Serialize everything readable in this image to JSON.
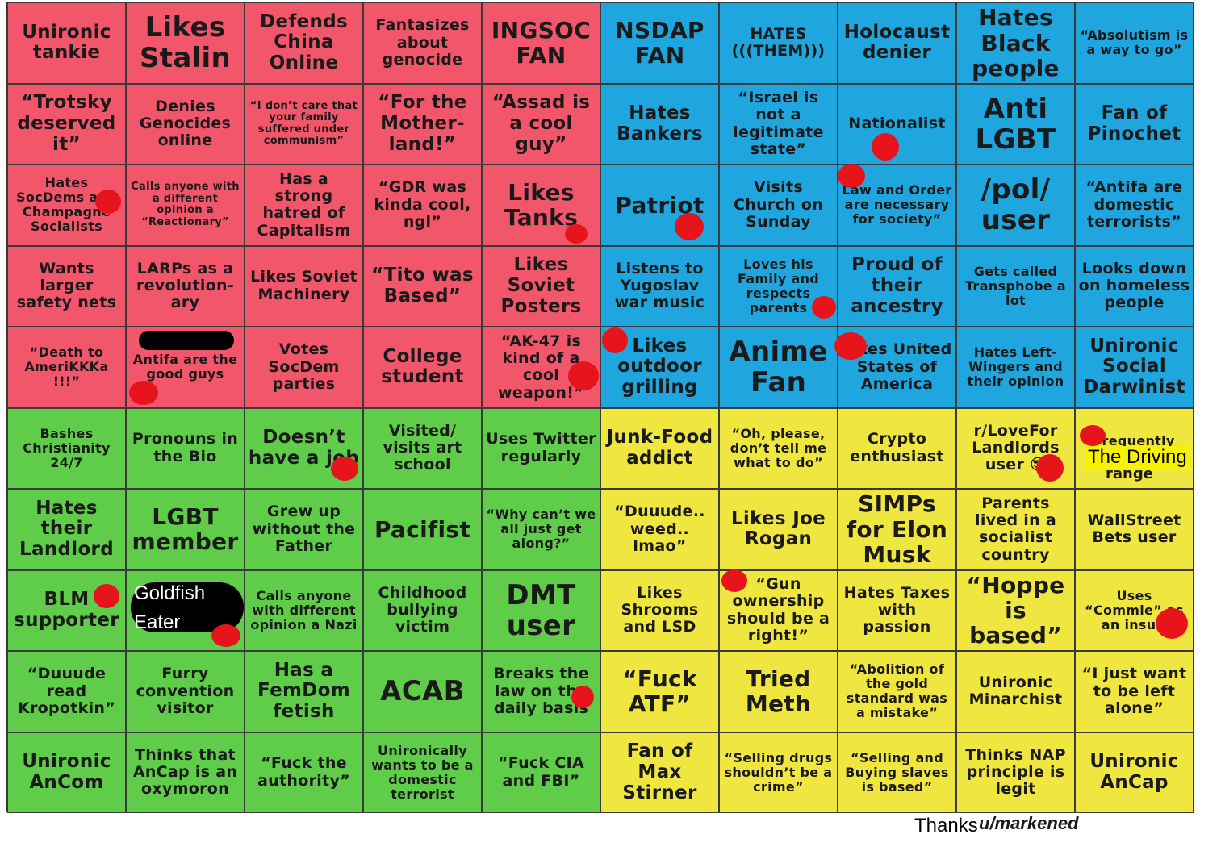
{
  "cells": [
    {
      "text": "Unironic tankie",
      "color": "red",
      "size": "s-m"
    },
    {
      "text": "Likes Stalin",
      "color": "red",
      "size": "s-xl"
    },
    {
      "text": "Defends China Online",
      "color": "red",
      "size": "s-m"
    },
    {
      "text": "Fantasizes about genocide",
      "color": "red",
      "size": "s-s"
    },
    {
      "text": "INGSOC FAN",
      "color": "red",
      "size": "s-l"
    },
    {
      "text": "NSDAP FAN",
      "color": "blue",
      "size": "s-l"
    },
    {
      "text": "HATES (((THEM)))",
      "color": "blue",
      "size": "s-s"
    },
    {
      "text": "Holocaust denier",
      "color": "blue",
      "size": "s-m"
    },
    {
      "text": "Hates Black people",
      "color": "blue",
      "size": "s-l"
    },
    {
      "text": "“Absolutism is a way to go”",
      "color": "blue",
      "size": "s-xs"
    },
    {
      "text": "“Trotsky deserved it”",
      "color": "red",
      "size": "s-m"
    },
    {
      "text": "Denies Genocides online",
      "color": "red",
      "size": "s-s"
    },
    {
      "text": "“I don’t care that your family suffered under communism”",
      "color": "red",
      "size": "s-xxs"
    },
    {
      "text": "“For the Mother-land!”",
      "color": "red",
      "size": "s-m"
    },
    {
      "text": "“Assad is a cool guy”",
      "color": "red",
      "size": "s-m"
    },
    {
      "text": "Hates Bankers",
      "color": "blue",
      "size": "s-m"
    },
    {
      "text": "“Israel is not a legitimate state”",
      "color": "blue",
      "size": "s-s"
    },
    {
      "text": "Nationalist",
      "color": "blue",
      "size": "s-s"
    },
    {
      "text": "Anti LGBT",
      "color": "blue",
      "size": "s-xl"
    },
    {
      "text": "Fan of Pinochet",
      "color": "blue",
      "size": "s-m"
    },
    {
      "text": "Hates SocDems and Champagne Socialists",
      "color": "red",
      "size": "s-xs"
    },
    {
      "text": "Calls anyone with a different opinion a “Reactionary”",
      "color": "red",
      "size": "s-xxs"
    },
    {
      "text": "Has a strong hatred of Capitalism",
      "color": "red",
      "size": "s-s"
    },
    {
      "text": "“GDR was kinda cool, ngl”",
      "color": "red",
      "size": "s-s"
    },
    {
      "text": "Likes Tanks",
      "color": "red",
      "size": "s-l"
    },
    {
      "text": "Patriot",
      "color": "blue",
      "size": "s-l"
    },
    {
      "text": "Visits Church on Sunday",
      "color": "blue",
      "size": "s-s"
    },
    {
      "text": "Law and Order are necessary for society”",
      "color": "blue",
      "size": "s-xs"
    },
    {
      "text": "/pol/ user",
      "color": "blue",
      "size": "s-xl"
    },
    {
      "text": "“Antifa are domestic terrorists”",
      "color": "blue",
      "size": "s-s"
    },
    {
      "text": "Wants larger safety nets",
      "color": "red",
      "size": "s-s"
    },
    {
      "text": "LARPs as a revolution-ary",
      "color": "red",
      "size": "s-s"
    },
    {
      "text": "Likes Soviet Machinery",
      "color": "red",
      "size": "s-s"
    },
    {
      "text": "“Tito was Based”",
      "color": "red",
      "size": "s-m"
    },
    {
      "text": "Likes Soviet Posters",
      "color": "red",
      "size": "s-m"
    },
    {
      "text": "Listens to Yugoslav war music",
      "color": "blue",
      "size": "s-s"
    },
    {
      "text": "Loves his Family and respects parents",
      "color": "blue",
      "size": "s-xs"
    },
    {
      "text": "Proud of their ancestry",
      "color": "blue",
      "size": "s-m"
    },
    {
      "text": "Gets called Transphobe a lot",
      "color": "blue",
      "size": "s-xs"
    },
    {
      "text": "Looks down on homeless people",
      "color": "blue",
      "size": "s-s"
    },
    {
      "text": "“Death to AmeriKKKa !!!”",
      "color": "red",
      "size": "s-xs"
    },
    {
      "text": "Antifa are the good guys",
      "color": "red",
      "size": "s-xs"
    },
    {
      "text": "Votes SocDem parties",
      "color": "red",
      "size": "s-s"
    },
    {
      "text": "College student",
      "color": "red",
      "size": "s-m"
    },
    {
      "text": "“AK-47 is kind of a cool weapon!”",
      "color": "red",
      "size": "s-s"
    },
    {
      "text": "Likes outdoor grilling",
      "color": "blue",
      "size": "s-m"
    },
    {
      "text": "Anime Fan",
      "color": "blue",
      "size": "s-xl"
    },
    {
      "text": "Likes United States of America",
      "color": "blue",
      "size": "s-s"
    },
    {
      "text": "Hates Left-Wingers and their opinion",
      "color": "blue",
      "size": "s-xs"
    },
    {
      "text": "Unironic Social Darwinist",
      "color": "blue",
      "size": "s-m"
    },
    {
      "text": "Bashes Christianity 24/7",
      "color": "green",
      "size": "s-xs"
    },
    {
      "text": "Pronouns in the Bio",
      "color": "green",
      "size": "s-s"
    },
    {
      "text": "Doesn’t have a job",
      "color": "green",
      "size": "s-m"
    },
    {
      "text": "Visited/ visits art school",
      "color": "green",
      "size": "s-s"
    },
    {
      "text": "Uses Twitter regularly",
      "color": "green",
      "size": "s-s"
    },
    {
      "text": "Junk-Food addict",
      "color": "yellow",
      "size": "s-m"
    },
    {
      "text": "“Oh, please, don’t tell me what to do”",
      "color": "yellow",
      "size": "s-xs"
    },
    {
      "text": "Crypto enthusiast",
      "color": "yellow",
      "size": "s-s"
    },
    {
      "text": "r/LoveFor Landlords user 😎",
      "color": "yellow",
      "size": "s-s"
    },
    {
      "text": "Frequently visits",
      "color": "yellow",
      "size": "s-xs"
    },
    {
      "text": "Hates their Landlord",
      "color": "green",
      "size": "s-m"
    },
    {
      "text": "LGBT member",
      "color": "green",
      "size": "s-l"
    },
    {
      "text": "Grew up without the Father",
      "color": "green",
      "size": "s-s"
    },
    {
      "text": "Pacifist",
      "color": "green",
      "size": "s-l"
    },
    {
      "text": "“Why can’t we all just get along?”",
      "color": "green",
      "size": "s-xs"
    },
    {
      "text": "“Duuude.. weed.. lmao”",
      "color": "yellow",
      "size": "s-s"
    },
    {
      "text": "Likes Joe Rogan",
      "color": "yellow",
      "size": "s-m"
    },
    {
      "text": "SIMPs for Elon Musk",
      "color": "yellow",
      "size": "s-l"
    },
    {
      "text": "Parents lived in a socialist country",
      "color": "yellow",
      "size": "s-s"
    },
    {
      "text": "WallStreet Bets user",
      "color": "yellow",
      "size": "s-s"
    },
    {
      "text": "BLM supporter",
      "color": "green",
      "size": "s-m"
    },
    {
      "text": "",
      "color": "green",
      "size": "s-s"
    },
    {
      "text": "Calls anyone with different opinion a Nazi",
      "color": "green",
      "size": "s-xs"
    },
    {
      "text": "Childhood bullying victim",
      "color": "green",
      "size": "s-s"
    },
    {
      "text": "DMT user",
      "color": "green",
      "size": "s-xl"
    },
    {
      "text": "Likes Shrooms and LSD",
      "color": "yellow",
      "size": "s-s"
    },
    {
      "text": "“Gun ownership should be a right!”",
      "color": "yellow",
      "size": "s-s"
    },
    {
      "text": "Hates Taxes with passion",
      "color": "yellow",
      "size": "s-s"
    },
    {
      "text": "“Hoppe is based”",
      "color": "yellow",
      "size": "s-l"
    },
    {
      "text": "Uses “Commie” as an insult",
      "color": "yellow",
      "size": "s-xs"
    },
    {
      "text": "“Duuude read Kropotkin”",
      "color": "green",
      "size": "s-s"
    },
    {
      "text": "Furry convention visitor",
      "color": "green",
      "size": "s-s"
    },
    {
      "text": "Has a FemDom fetish",
      "color": "green",
      "size": "s-m"
    },
    {
      "text": "ACAB",
      "color": "green",
      "size": "s-xl"
    },
    {
      "text": "Breaks the law on the daily basis",
      "color": "green",
      "size": "s-s"
    },
    {
      "text": "“Fuck ATF”",
      "color": "yellow",
      "size": "s-l"
    },
    {
      "text": "Tried Meth",
      "color": "yellow",
      "size": "s-l"
    },
    {
      "text": "“Abolition of the gold standard was a mistake”",
      "color": "yellow",
      "size": "s-xs"
    },
    {
      "text": "Unironic Minarchist",
      "color": "yellow",
      "size": "s-s"
    },
    {
      "text": "“I just want to be left alone”",
      "color": "yellow",
      "size": "s-s"
    },
    {
      "text": "Unironic AnCom",
      "color": "green",
      "size": "s-m"
    },
    {
      "text": "Thinks that AnCap is an oxymoron",
      "color": "green",
      "size": "s-s"
    },
    {
      "text": "“Fuck the authority”",
      "color": "green",
      "size": "s-s"
    },
    {
      "text": "Unironically wants to be a domestic terrorist",
      "color": "green",
      "size": "s-xs"
    },
    {
      "text": "“Fuck CIA and FBI”",
      "color": "green",
      "size": "s-s"
    },
    {
      "text": "Fan of Max Stirner",
      "color": "yellow",
      "size": "s-m"
    },
    {
      "text": "“Selling drugs shouldn’t be a crime”",
      "color": "yellow",
      "size": "s-xs"
    },
    {
      "text": "“Selling and Buying slaves is based”",
      "color": "yellow",
      "size": "s-xs"
    },
    {
      "text": "Thinks NAP principle is legit",
      "color": "yellow",
      "size": "s-s"
    },
    {
      "text": "Unironic AnCap",
      "color": "yellow",
      "size": "s-m"
    }
  ],
  "colors": {
    "red": "#f2566a",
    "blue": "#1fa6df",
    "green": "#5fcd4a",
    "yellow": "#f0e640",
    "mark": "#e8141c"
  },
  "overlays": {
    "goldfish_line1": "Goldfish",
    "goldfish_line2": "Eater",
    "driving_range_highlight": "The Driving",
    "driving_range_rest": "range"
  },
  "credit": {
    "thanks": "Thanks",
    "user": "u/markened"
  }
}
